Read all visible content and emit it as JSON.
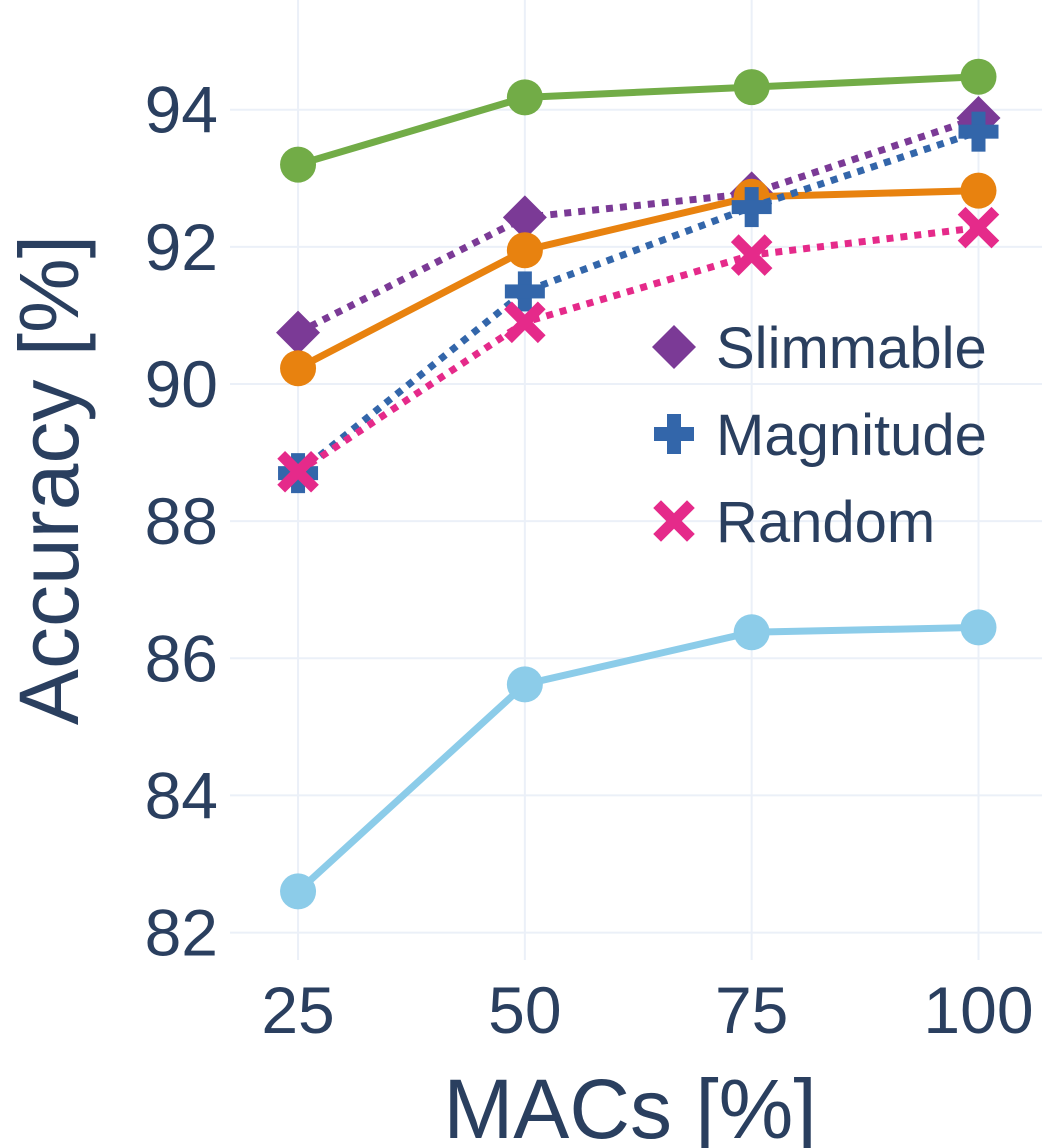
{
  "chart_data": {
    "type": "line",
    "title": "",
    "xlabel": "MACs [%]",
    "ylabel": "Accuracy [%]",
    "x": [
      25,
      50,
      75,
      100
    ],
    "x_ticks": [
      "25",
      "50",
      "75",
      "100"
    ],
    "y_ticks": [
      "82",
      "84",
      "86",
      "88",
      "90",
      "92",
      "94"
    ],
    "xlim": [
      17.5,
      107
    ],
    "ylim": [
      81.6,
      95.6
    ],
    "grid": true,
    "legend_position": "right-middle",
    "series": [
      {
        "name": "",
        "values": [
          93.2,
          94.18,
          94.33,
          94.48
        ],
        "color": "#72ac47",
        "dash": "solid",
        "marker": "circle",
        "in_legend": false
      },
      {
        "name": "Slimmable",
        "values": [
          90.75,
          92.43,
          92.78,
          93.88
        ],
        "color": "#7b3a96",
        "dash": "dot",
        "marker": "diamond",
        "in_legend": true
      },
      {
        "name": "",
        "values": [
          90.23,
          91.95,
          92.73,
          92.82
        ],
        "color": "#e8820f",
        "dash": "solid",
        "marker": "circle",
        "in_legend": false
      },
      {
        "name": "Magnitude",
        "values": [
          88.7,
          91.35,
          92.58,
          93.68
        ],
        "color": "#3366aa",
        "dash": "dot",
        "marker": "cross",
        "in_legend": true
      },
      {
        "name": "Random",
        "values": [
          88.72,
          90.9,
          91.88,
          92.28
        ],
        "color": "#e52a8a",
        "dash": "dot",
        "marker": "x",
        "in_legend": true
      },
      {
        "name": "",
        "values": [
          82.6,
          85.62,
          86.38,
          86.45
        ],
        "color": "#8ccce9",
        "dash": "solid",
        "marker": "circle",
        "in_legend": false
      }
    ]
  }
}
